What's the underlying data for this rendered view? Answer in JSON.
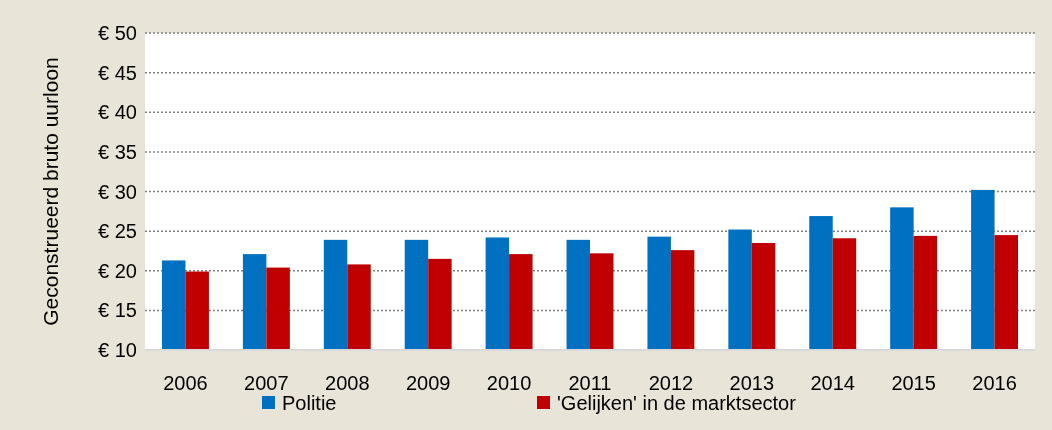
{
  "chart_data": {
    "type": "bar",
    "ylabel": "Geconstrueerd bruto uurloon",
    "categories": [
      "2006",
      "2007",
      "2008",
      "2009",
      "2010",
      "2011",
      "2012",
      "2013",
      "2014",
      "2015",
      "2016"
    ],
    "series": [
      {
        "name": "Politie",
        "color": "#0070c0",
        "values": [
          21.3,
          22.1,
          23.9,
          23.9,
          24.2,
          23.9,
          24.3,
          25.2,
          26.9,
          28.0,
          30.2
        ]
      },
      {
        "name": "'Gelijken' in de marktsector",
        "color": "#c00000",
        "values": [
          19.9,
          20.4,
          20.8,
          21.5,
          22.1,
          22.2,
          22.6,
          23.5,
          24.1,
          24.4,
          24.5
        ]
      }
    ],
    "ylim": [
      10,
      50
    ],
    "yticks": [
      {
        "value": 10,
        "label": "€ 10"
      },
      {
        "value": 15,
        "label": "€ 15"
      },
      {
        "value": 20,
        "label": "€ 20"
      },
      {
        "value": 25,
        "label": "€ 25"
      },
      {
        "value": 30,
        "label": "€ 30"
      },
      {
        "value": 35,
        "label": "€ 35"
      },
      {
        "value": 40,
        "label": "€ 40"
      },
      {
        "value": 45,
        "label": "€ 45"
      },
      {
        "value": 50,
        "label": "€ 50"
      }
    ],
    "grid": "y",
    "legend": "bottom"
  }
}
